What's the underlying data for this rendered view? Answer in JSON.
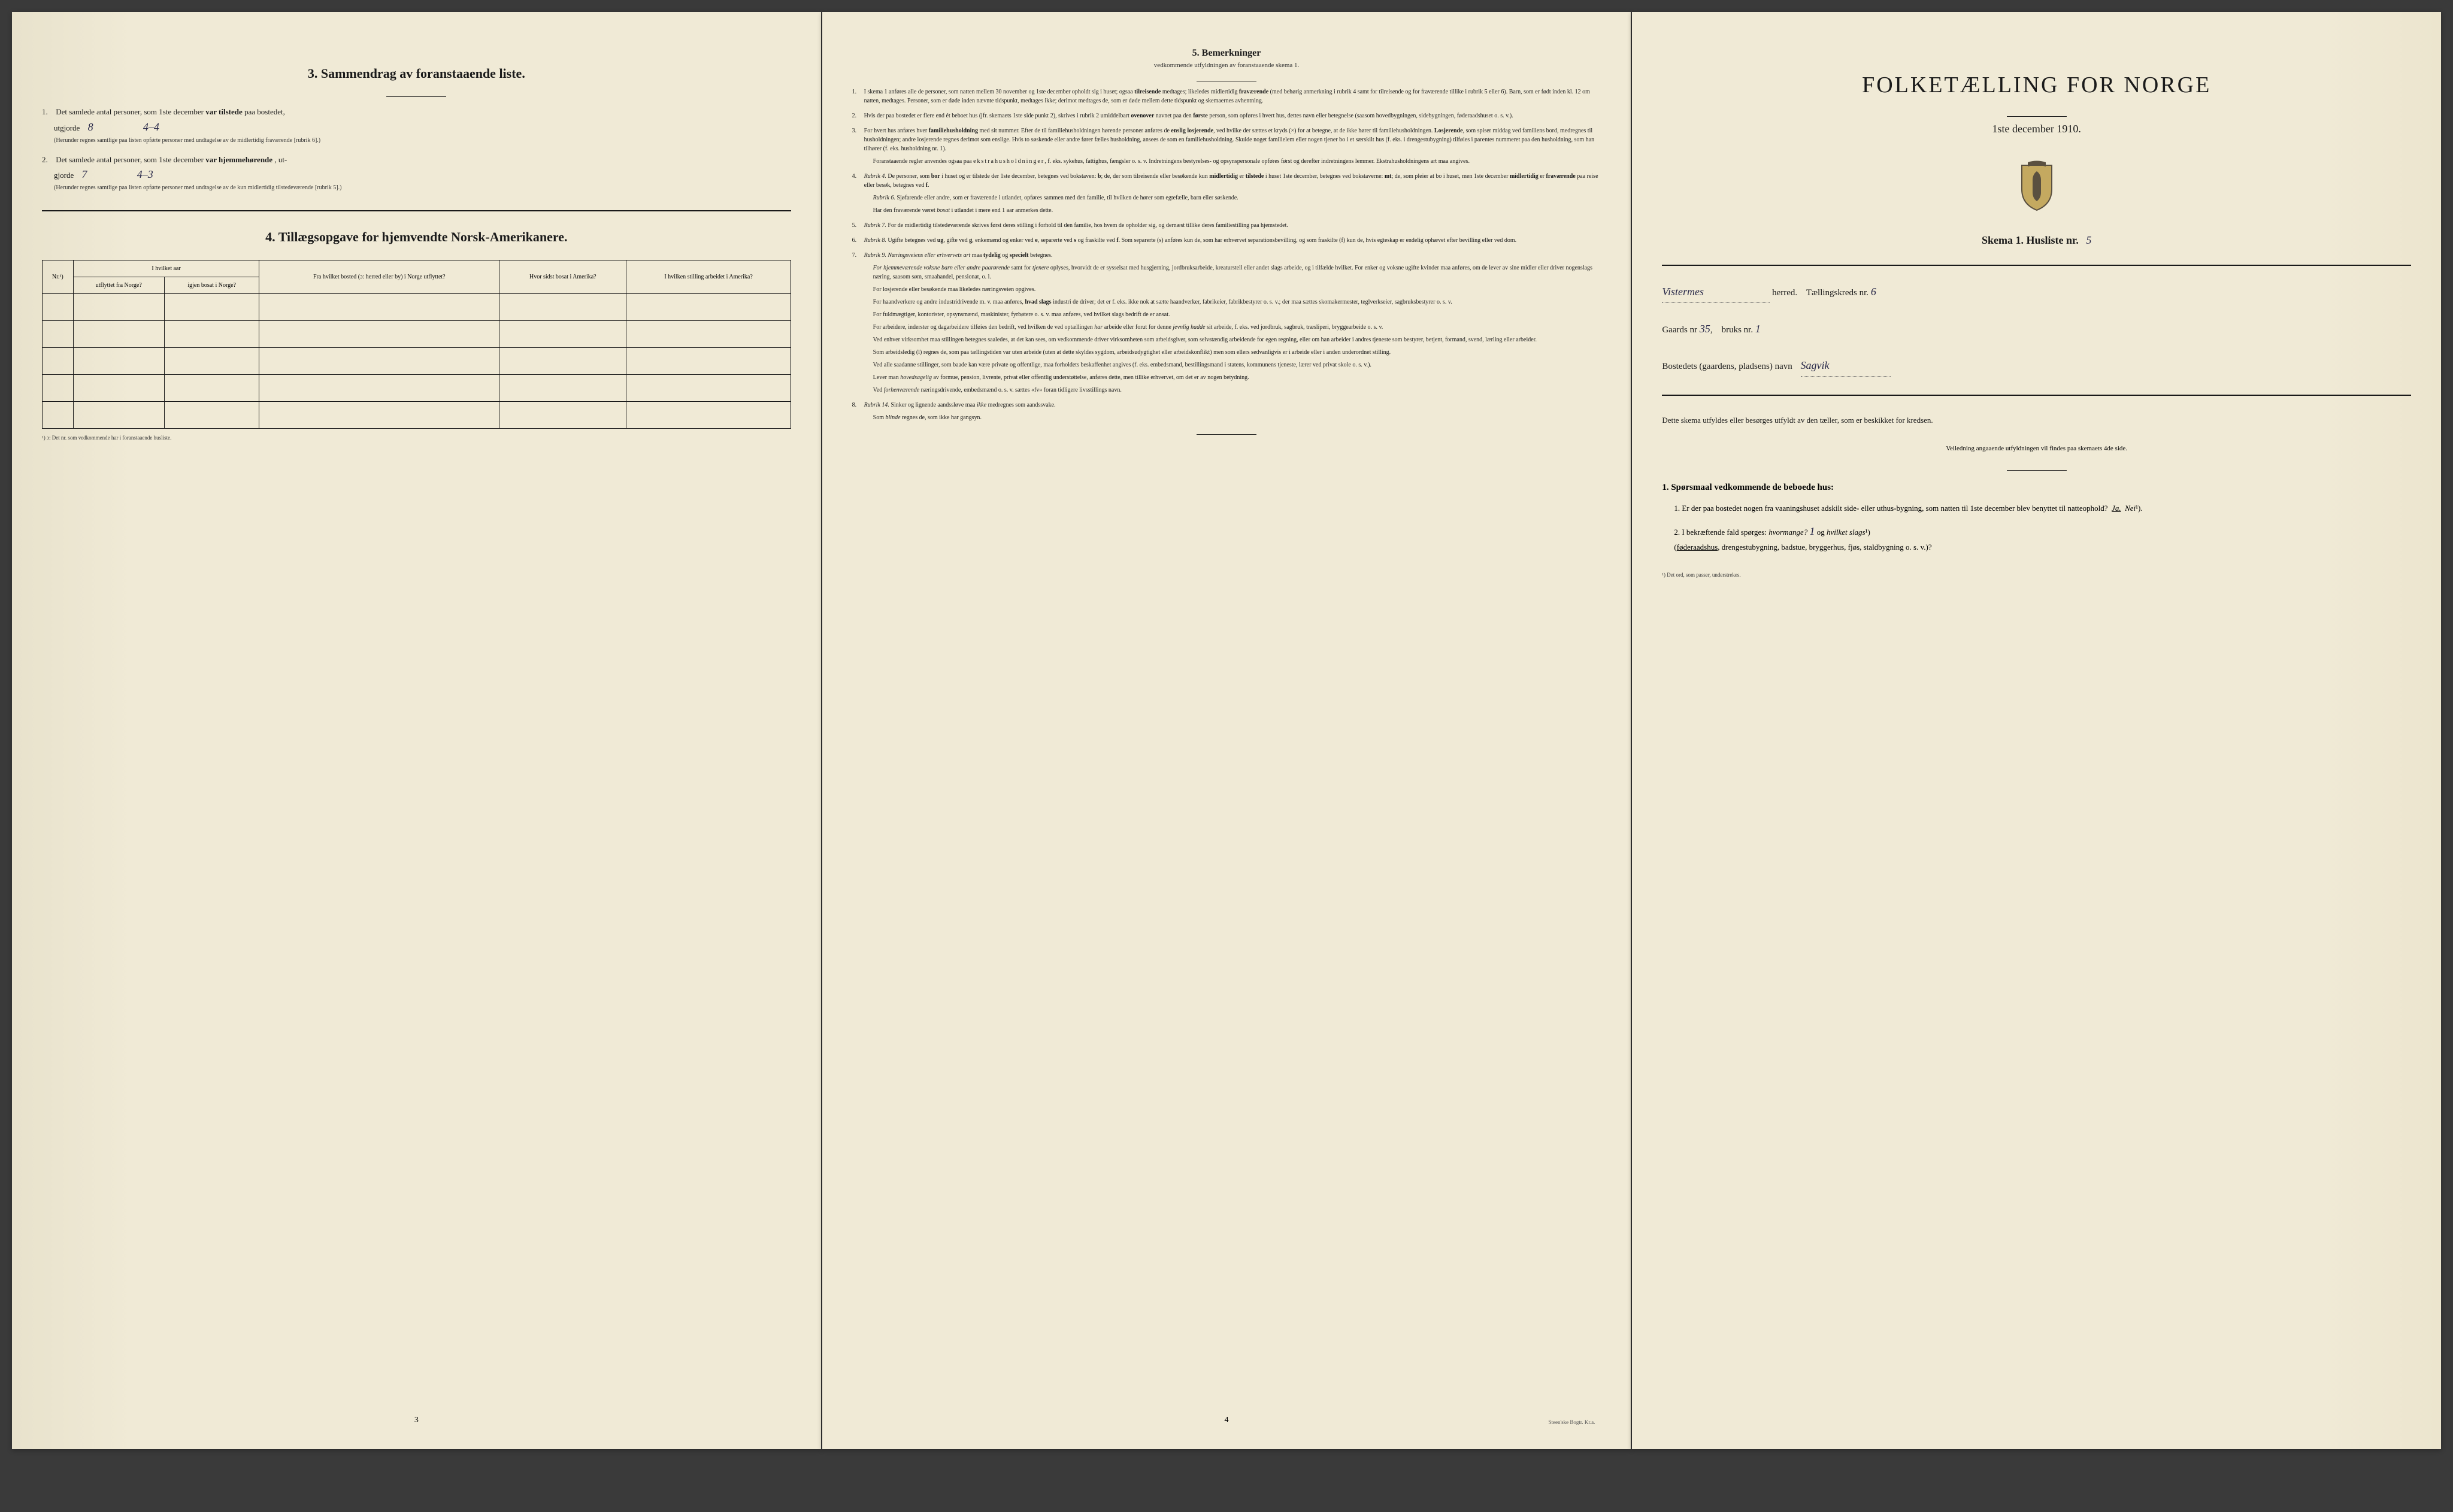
{
  "page_left": {
    "section3": {
      "title": "3.   Sammendrag av foranstaaende liste.",
      "item1": {
        "num": "1.",
        "text_before": "Det samlede antal personer, som 1ste december",
        "text_bold": "var tilstede",
        "text_after": "paa bostedet,",
        "row2_text": "utgjorde",
        "handwritten1": "8",
        "handwritten2": "4–4",
        "fine_print": "(Herunder regnes samtlige paa listen opførte personer med undtagelse av de midlertidig fraværende [rubrik 6].)"
      },
      "item2": {
        "num": "2.",
        "text_before": "Det samlede antal personer, som 1ste december",
        "text_bold": "var hjemmehørende",
        "text_after": ", ut-",
        "row2_text": "gjorde",
        "handwritten1": "7",
        "handwritten2": "4–3",
        "fine_print": "(Herunder regnes samtlige paa listen opførte personer med undtagelse av de kun midlertidig tilstedeværende [rubrik 5].)"
      }
    },
    "section4": {
      "title": "4.   Tillægsopgave for hjemvendte Norsk-Amerikanere.",
      "table": {
        "headers": {
          "col1": "Nr.¹)",
          "col2_top": "I hvilket aar",
          "col2a": "utflyttet fra Norge?",
          "col2b": "igjen bosat i Norge?",
          "col3": "Fra hvilket bosted (ɔ: herred eller by) i Norge utflyttet?",
          "col4": "Hvor sidst bosat i Amerika?",
          "col5": "I hvilken stilling arbeidet i Amerika?"
        },
        "empty_rows": 5
      },
      "footnote": "¹) ɔ: Det nr. som vedkommende har i foranstaaende husliste."
    },
    "page_num": "3"
  },
  "page_middle": {
    "title": "5.   Bemerkninger",
    "subtitle": "vedkommende utfyldningen av foranstaaende skema 1.",
    "items": [
      {
        "num": "1.",
        "text": "I skema 1 anføres alle de personer, som natten mellem 30 november og 1ste december opholdt sig i huset; ogsaa <b>tilreisende</b> medtages; likeledes midlertidig <b>fraværende</b> (med behørig anmerkning i rubrik 4 samt for tilreisende og for fraværende tillike i rubrik 5 eller 6). Barn, som er født inden kl. 12 om natten, medtages. Personer, som er døde inden nævnte tidspunkt, medtages ikke; derimot medtages de, som er døde mellem dette tidspunkt og skemaernes avhentning."
      },
      {
        "num": "2.",
        "text": "Hvis der paa bostedet er flere end ét beboet hus (jfr. skemaets 1ste side punkt 2), skrives i rubrik 2 umiddelbart <b>ovenover</b> navnet paa den <b>første</b> person, som opføres i hvert hus, dettes navn eller betegnelse (saasom hovedbygningen, sidebygningen, føderaadshuset o. s. v.)."
      },
      {
        "num": "3.",
        "text": "For hvert hus anføres hver <b>familiehusholdning</b> med sit nummer. Efter de til familiehusholdningen hørende personer anføres de <b>enslig losjerende</b>, ved hvilke der sættes et kryds (×) for at betegne, at de ikke hører til familiehusholdningen. <b>Losjerende</b>, som spiser middag ved familiens bord, medregnes til husholdningen; andre losjerende regnes derimot som enslige. Hvis to søskende eller andre fører fælles husholdning, ansees de som en familiehusholdning. Skulde noget familielem eller nogen tjener bo i et særskilt hus (f. eks. i drengestubygning) tilføies i parentes nummeret paa den husholdning, som han tilhører (f. eks. husholdning nr. 1).",
        "sub": "Foranstaaende regler anvendes ogsaa paa <span class=\"letter-spaced\">ekstrahusholdninger</span>, f. eks. sykehus, fattighus, fængsler o. s. v. Indretningens bestyrelses- og opsynspersonale opføres først og derefter indretningens lemmer. Ekstrahusholdningens art maa angives."
      },
      {
        "num": "4.",
        "text": "<em>Rubrik 4.</em> De personer, som <b>bor</b> i huset og er tilstede der 1ste december, betegnes ved bokstaven: <b>b</b>; de, der som tilreisende eller besøkende kun <b>midlertidig</b> er <b>tilstede</b> i huset 1ste december, betegnes ved bokstaverne: <b>mt</b>; de, som pleier at bo i huset, men 1ste december <b>midlertidig</b> er <b>fraværende</b> paa reise eller besøk, betegnes ved <b>f</b>.",
        "sub": "<em>Rubrik 6.</em> Sjøfarende eller andre, som er fraværende i utlandet, opføres sammen med den familie, til hvilken de hører som egtefælle, barn eller søskende.",
        "sub2": "Har den fraværende været <em>bosat</em> i utlandet i mere end 1 aar anmerkes dette."
      },
      {
        "num": "5.",
        "text": "<em>Rubrik 7.</em> For de midlertidig tilstedeværende skrives først deres stilling i forhold til den familie, hos hvem de opholder sig, og dernæst tillike deres familiestilling paa hjemstedet."
      },
      {
        "num": "6.",
        "text": "<em>Rubrik 8.</em> Ugifte betegnes ved <b>ug</b>, gifte ved <b>g</b>, enkemænd og enker ved <b>e</b>, separerte ved <b>s</b> og fraskilte ved <b>f</b>. Som separerte (s) anføres kun de, som har erhvervet separationsbevilling, og som fraskilte (f) kun de, hvis egteskap er endelig ophævet efter bevilling eller ved dom."
      },
      {
        "num": "7.",
        "text": "<em>Rubrik 9.</em> <em>Næringsveiens eller erhvervets art</em> maa <b>tydelig</b> og <b>specielt</b> betegnes.",
        "sub": "<em>For hjemmeværende voksne barn eller andre paarørende</em> samt for <em>tjenere</em> oplyses, hvorvidt de er sysselsat med husgjerning, jordbruksarbeide, kreaturstell eller andet slags arbeide, og i tilfælde hvilket. For enker og voksne ugifte kvinder maa anføres, om de lever av sine midler eller driver nogenslags næring, saasom søm, smaahandel, pensionat, o. l.",
        "sub2": "For losjerende eller besøkende maa likeledes næringsveien opgives.",
        "sub3": "For haandverkere og andre industridrivende m. v. maa anføres, <b>hvad slags</b> industri de driver; det er f. eks. ikke nok at sætte haandverker, fabrikeier, fabrikbestyrer o. s. v.; der maa sættes skomakermester, teglverkseier, sagbruksbestyrer o. s. v.",
        "sub4": "For fuldmægtiger, kontorister, opsynsmænd, maskinister, fyrbøtere o. s. v. maa anføres, ved hvilket slags bedrift de er ansat.",
        "sub5": "For arbeidere, inderster og dagarbeidere tilføies den bedrift, ved hvilken de ved optællingen <em>har</em> arbeide eller forut for denne <em>jevnlig hadde</em> sit arbeide, f. eks. ved jordbruk, sagbruk, træsliperi, bryggearbeide o. s. v.",
        "sub6": "Ved enhver virksomhet maa stillingen betegnes saaledes, at det kan sees, om vedkommende driver virksomheten som arbeidsgiver, som selvstændig arbeidende for egen regning, eller om han arbeider i andres tjeneste som bestyrer, betjent, formand, svend, lærling eller arbeider.",
        "sub7": "Som arbeidsledig (l) regnes de, som paa tællingstiden var uten arbeide (uten at dette skyldes sygdom, arbeidsudygtighet eller arbeidskonflikt) men som ellers sedvanligvis er i arbeide eller i anden underordnet stilling.",
        "sub8": "Ved alle saadanne stillinger, som baade kan være private og offentlige, maa forholdets beskaffenhet angives (f. eks. embedsmand, bestillingsmand i statens, kommunens tjeneste, lærer ved privat skole o. s. v.).",
        "sub9": "Lever man <em>hovedsagelig</em> av formue, pension, livrente, privat eller offentlig understøttelse, anføres dette, men tillike erhvervet, om det er av nogen betydning.",
        "sub10": "Ved <em>forhenværende</em> næringsdrivende, embedsmænd o. s. v. sættes «fv» foran tidligere livsstillings navn."
      },
      {
        "num": "8.",
        "text": "<em>Rubrik 14.</em> Sinker og lignende aandssløve maa <em>ikke</em> medregnes som aandssvake.",
        "sub": "Som <em>blinde</em> regnes de, som ikke har gangsyn."
      }
    ],
    "page_num": "4",
    "printer": "Steen'ske Bogtr. Kr.a."
  },
  "page_right": {
    "main_title": "FOLKETÆLLING FOR NORGE",
    "date": "1ste december 1910.",
    "skema_text": "Skema 1.  Husliste nr.",
    "husliste_nr": "5",
    "herred_handwritten": "Vistermes",
    "herred_label": "herred.",
    "taellingskreds_label": "Tællingskreds nr.",
    "taellingskreds_nr": "6",
    "gaards_label": "Gaards nr",
    "gaards_nr": "35",
    "bruks_label": "bruks nr.",
    "bruks_nr": "1",
    "bosted_label": "Bostedets (gaardens, pladsens) navn",
    "bosted_name": "Sagvik",
    "instructions_text": "Dette skema utfyldes eller besørges utfyldt av den tæller, som er beskikket for kredsen.",
    "instructions_sub": "Veiledning angaaende utfyldningen vil findes paa skemaets 4de side.",
    "q_heading": "1. Spørsmaal vedkommende de beboede hus:",
    "q1": {
      "num": "1.",
      "text": "Er der paa bostedet nogen fra vaaningshuset adskilt side- eller uthus-bygning, som natten til 1ste december blev benyttet til natteophold?",
      "ja": "Ja.",
      "nei": "Nei",
      "sup": "¹)."
    },
    "q2": {
      "num": "2.",
      "text_before": "I bekræftende fald spørges:",
      "hvormange": "hvormange?",
      "hvormange_val": "1",
      "og_text": "og",
      "hvilket": "hvilket slags",
      "sup": "¹)",
      "options": "(føderaadshus, drengestubygning, badstue, bryggerhus, fjøs, staldbygning o. s. v.)?"
    },
    "footnote": "¹) Det ord, som passer, understrekes."
  },
  "colors": {
    "paper": "#f0ead6",
    "text": "#1a1a1a",
    "ink_handwriting": "#2a2a4a",
    "shield_gold": "#c4a960",
    "shield_dark": "#5a5040"
  }
}
